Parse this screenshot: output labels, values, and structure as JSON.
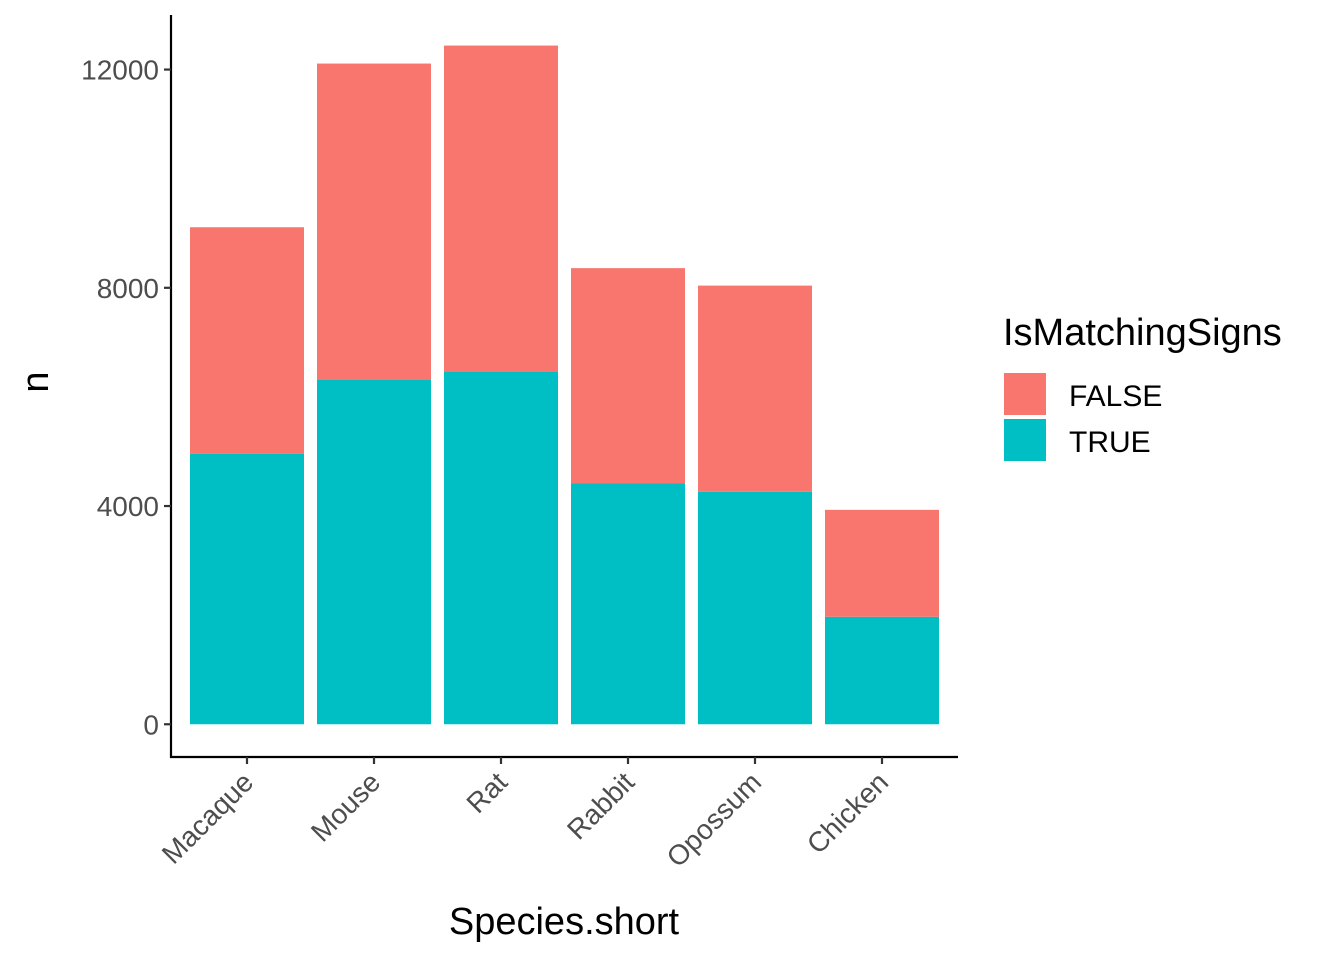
{
  "chart_data": {
    "type": "bar",
    "stacked": true,
    "categories": [
      "Macaque",
      "Mouse",
      "Rat",
      "Rabbit",
      "Opossum",
      "Chicken"
    ],
    "series": [
      {
        "name": "FALSE",
        "values": [
          4150,
          5800,
          5970,
          3940,
          3780,
          1960
        ]
      },
      {
        "name": "TRUE",
        "values": [
          4960,
          6310,
          6470,
          4420,
          4260,
          1970
        ]
      }
    ],
    "xlabel": "Species.short",
    "ylabel": "n",
    "ylim": [
      -600,
      13000
    ],
    "yticks": [
      0,
      4000,
      8000,
      12000
    ],
    "grid": false,
    "legend": {
      "title": "IsMatchingSigns",
      "position": "right"
    }
  },
  "colors": {
    "FALSE": "#F8766D",
    "TRUE": "#00BFC4"
  }
}
